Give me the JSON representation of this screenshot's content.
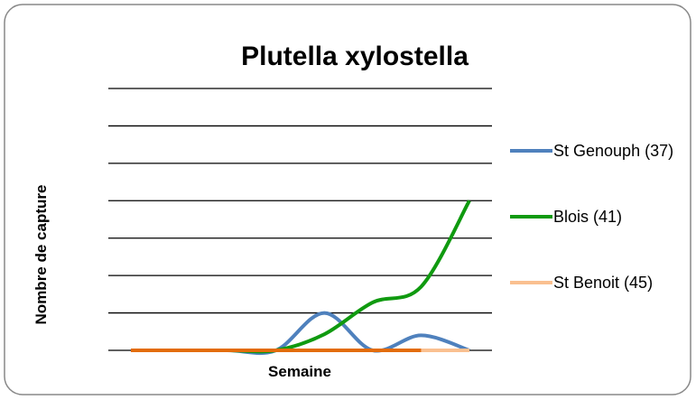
{
  "chart_data": {
    "type": "line",
    "title": "Plutella xylostella",
    "xlabel": "Semaine",
    "ylabel": "Nombre de capture",
    "categories": [
      null,
      null,
      null,
      null,
      null,
      null,
      null,
      null
    ],
    "series": [
      {
        "name": "St Genouph (37)",
        "color": "#4f81bd",
        "values": [
          0,
          0,
          0,
          0,
          1.0,
          0,
          0.4,
          0
        ]
      },
      {
        "name": "Blois (41)",
        "color": "#109a10",
        "values": [
          0,
          0,
          0,
          0,
          0.43,
          1.28,
          1.7,
          4.0
        ]
      },
      {
        "name": "St Benoit (45)",
        "color": "#fac090",
        "values": [
          0,
          0,
          0,
          0,
          0,
          0,
          0,
          0
        ]
      },
      {
        "color": "#e36c09",
        "values": [
          0,
          0,
          0,
          0,
          0,
          0,
          0,
          null
        ]
      }
    ],
    "ylim": [
      0,
      7
    ],
    "yticks": [
      0,
      1,
      2,
      3,
      4,
      5,
      6,
      7
    ],
    "grid": true
  }
}
